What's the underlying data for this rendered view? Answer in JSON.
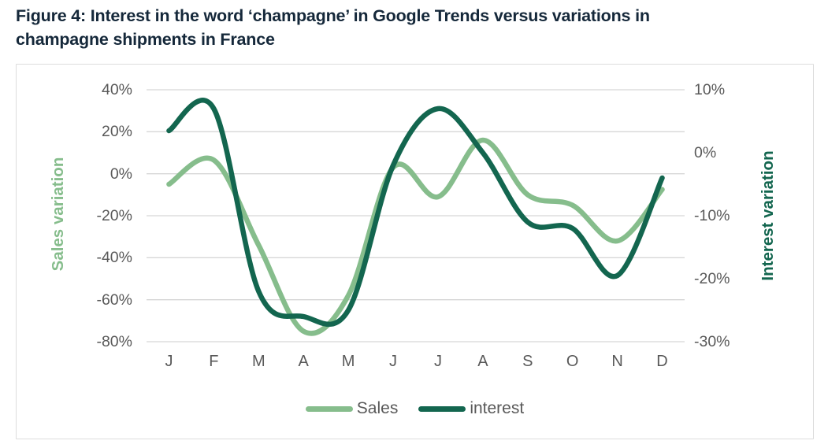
{
  "figure": {
    "title": "Figure 4: Interest in the word ‘champagne’ in Google Trends versus variations in champagne shipments in France",
    "title_line1": "Figure 4: Interest in the word ‘champagne’ in Google Trends versus variations in",
    "title_line2": "champagne shipments in France"
  },
  "chart_data": {
    "type": "line",
    "categories": [
      "J",
      "F",
      "M",
      "A",
      "M",
      "J",
      "J",
      "A",
      "S",
      "O",
      "N",
      "D"
    ],
    "series": [
      {
        "name": "Sales",
        "axis": "left",
        "color": "#86bd8c",
        "values": [
          -5,
          6.5,
          -34,
          -75,
          -58,
          3,
          -11,
          16,
          -10,
          -15,
          -32,
          -7.5
        ]
      },
      {
        "name": "interest",
        "axis": "right",
        "color": "#13664f",
        "values": [
          3.5,
          7,
          -22,
          -26,
          -25,
          -2,
          7,
          0,
          -11,
          -12,
          -19.5,
          -4
        ]
      }
    ],
    "left_axis": {
      "label": "Sales variation",
      "ticks": [
        "40%",
        "20%",
        "0%",
        "-20%",
        "-40%",
        "-60%",
        "-80%"
      ],
      "min": -80,
      "max": 40,
      "step": 20
    },
    "right_axis": {
      "label": "Interest variation",
      "ticks": [
        "10%",
        "0%",
        "-10%",
        "-20%",
        "-30%"
      ],
      "min": -30,
      "max": 10,
      "step": 10
    },
    "grid": true,
    "legend_position": "bottom",
    "legend": [
      "Sales",
      "interest"
    ]
  },
  "colors": {
    "sales_line": "#86bd8c",
    "interest_line": "#13664f",
    "title_text": "#15283a",
    "tick_text": "#595959",
    "legend_text": "#595959",
    "gridline": "#d6d6d6",
    "card_border": "#dcdcdc",
    "background": "#ffffff"
  }
}
